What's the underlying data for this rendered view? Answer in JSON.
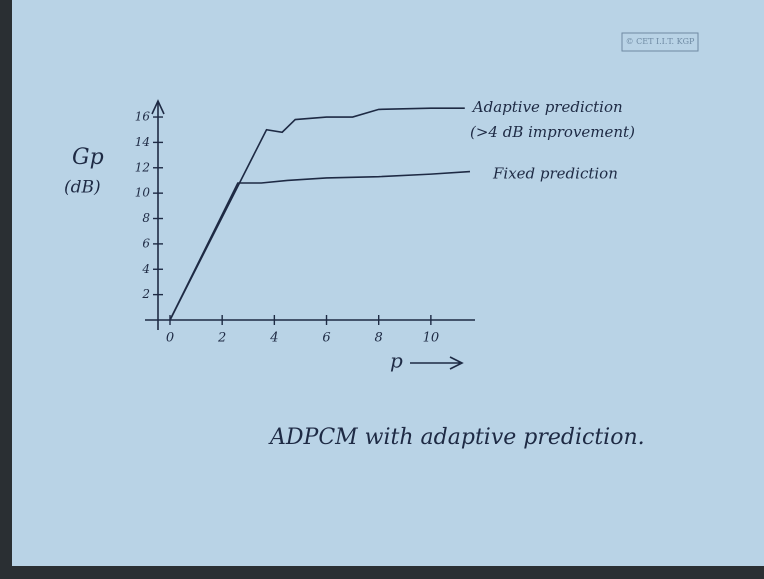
{
  "chart_data": {
    "type": "line",
    "watermark": "© CET I.I.T. KGP",
    "y_label": "Gp",
    "y_unit": "(dB)",
    "x_label": "p",
    "annotation": "(>4 dB improvement)",
    "caption": "ADPCM with adaptive prediction.",
    "xlim": [
      0,
      11.5
    ],
    "ylim": [
      0,
      17.5
    ],
    "xticks": [
      0,
      2,
      4,
      6,
      8,
      10
    ],
    "yticks": [
      2,
      4,
      6,
      8,
      10,
      12,
      14,
      16
    ],
    "series": [
      {
        "name": "Adaptive prediction",
        "color": "#1e2a44",
        "x": [
          0,
          3.7,
          4.3,
          4.8,
          6,
          7,
          8,
          10,
          11.3
        ],
        "values": [
          0,
          15,
          14.8,
          15.8,
          16,
          16,
          16.6,
          16.7,
          16.7
        ]
      },
      {
        "name": "Fixed prediction",
        "color": "#1e2a44",
        "x": [
          0,
          2.6,
          3.5,
          4.5,
          6,
          8,
          10,
          11.5
        ],
        "values": [
          0,
          10.8,
          10.8,
          11,
          11.2,
          11.3,
          11.5,
          11.7
        ]
      }
    ]
  }
}
